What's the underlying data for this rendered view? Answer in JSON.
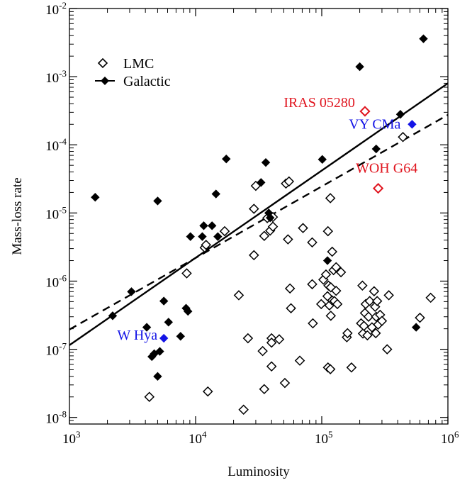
{
  "chart_data": {
    "type": "scatter",
    "xlabel": "Luminosity",
    "ylabel": "Mass-loss rate",
    "xscale": "log",
    "yscale": "log",
    "xlim": [
      1000,
      1000000
    ],
    "ylim": [
      8e-09,
      0.01
    ],
    "x_tick_exponents": [
      "3",
      "4",
      "5",
      "6"
    ],
    "y_tick_exponents": [
      "-8",
      "-7",
      "-6",
      "-5",
      "-4",
      "-3",
      "-2"
    ],
    "tick_base": "10",
    "legend": {
      "placement": "upper-left",
      "entries": [
        {
          "label": "LMC",
          "marker": "open-diamond"
        },
        {
          "label": "Galactic",
          "marker": "filled-diamond-line"
        }
      ]
    },
    "series": [
      {
        "name": "LMC",
        "marker": "open-diamond",
        "color": "#000000",
        "points": [
          [
            4300,
            2e-08
          ],
          [
            12500,
            2.4e-08
          ],
          [
            24000,
            1.3e-08
          ],
          [
            35000,
            2.6e-08
          ],
          [
            51000,
            3.2e-08
          ],
          [
            67000,
            6.8e-08
          ],
          [
            112000,
            5.4e-08
          ],
          [
            117000,
            5.1e-08
          ],
          [
            172000,
            5.4e-08
          ],
          [
            34000,
            9.4e-08
          ],
          [
            40000,
            5.6e-08
          ],
          [
            26000,
            1.45e-07
          ],
          [
            40000,
            1.45e-07
          ],
          [
            40000,
            1.25e-07
          ],
          [
            46000,
            1.4e-07
          ],
          [
            22000,
            6.2e-07
          ],
          [
            56000,
            7.8e-07
          ],
          [
            57000,
            4e-07
          ],
          [
            84000,
            9e-07
          ],
          [
            85000,
            2.4e-07
          ],
          [
            99000,
            4.6e-07
          ],
          [
            103000,
            1.05e-06
          ],
          [
            108000,
            1.25e-06
          ],
          [
            111000,
            6e-07
          ],
          [
            113000,
            8.6e-07
          ],
          [
            115000,
            4.4e-07
          ],
          [
            118000,
            3.1e-07
          ],
          [
            118000,
            8.1e-07
          ],
          [
            121000,
            5.2e-07
          ],
          [
            124000,
            1.45e-06
          ],
          [
            126000,
            5.1e-07
          ],
          [
            130000,
            7.2e-07
          ],
          [
            133000,
            4.6e-07
          ],
          [
            142000,
            1.35e-06
          ],
          [
            130000,
            1.6e-06
          ],
          [
            158000,
            1.5e-07
          ],
          [
            160000,
            1.72e-07
          ],
          [
            205000,
            2.4e-07
          ],
          [
            210000,
            8.6e-07
          ],
          [
            212000,
            1.7e-07
          ],
          [
            216000,
            2.2e-07
          ],
          [
            220000,
            3.4e-07
          ],
          [
            223000,
            4.6e-07
          ],
          [
            230000,
            1.6e-07
          ],
          [
            235000,
            3e-07
          ],
          [
            240000,
            5.1e-07
          ],
          [
            250000,
            2.1e-07
          ],
          [
            260000,
            7.1e-07
          ],
          [
            265000,
            4.2e-07
          ],
          [
            268000,
            1.72e-07
          ],
          [
            270000,
            3e-07
          ],
          [
            275000,
            5.1e-07
          ],
          [
            280000,
            2.3e-07
          ],
          [
            290000,
            3.2e-07
          ],
          [
            300000,
            2.6e-07
          ],
          [
            330000,
            1e-07
          ],
          [
            340000,
            6.2e-07
          ],
          [
            600000,
            2.9e-07
          ],
          [
            730000,
            5.7e-07
          ],
          [
            8500,
            1.3e-06
          ],
          [
            11800,
            3.1e-06
          ],
          [
            12100,
            3.4e-06
          ],
          [
            17000,
            5.4e-06
          ],
          [
            29000,
            2.4e-06
          ],
          [
            29000,
            1.15e-05
          ],
          [
            30000,
            2.5e-05
          ],
          [
            35000,
            4.6e-06
          ],
          [
            37000,
            8.4e-06
          ],
          [
            39000,
            5.5e-06
          ],
          [
            41000,
            6.3e-06
          ],
          [
            41000,
            8.7e-06
          ],
          [
            52000,
            2.7e-05
          ],
          [
            55000,
            2.9e-05
          ],
          [
            54000,
            4.1e-06
          ],
          [
            71000,
            6e-06
          ],
          [
            84000,
            3.7e-06
          ],
          [
            112000,
            5.4e-06
          ],
          [
            117000,
            1.65e-05
          ],
          [
            121000,
            2.7e-06
          ],
          [
            440000,
            0.00013
          ]
        ]
      },
      {
        "name": "Galactic",
        "marker": "filled-diamond",
        "color": "#000000",
        "points": [
          [
            1600,
            1.7e-05
          ],
          [
            2200,
            3.1e-07
          ],
          [
            3100,
            7e-07
          ],
          [
            4100,
            2.1e-07
          ],
          [
            4500,
            7.8e-08
          ],
          [
            4700,
            8.6e-08
          ],
          [
            5000,
            4e-08
          ],
          [
            5200,
            9.3e-08
          ],
          [
            5000,
            1.5e-05
          ],
          [
            5600,
            5.1e-07
          ],
          [
            6100,
            2.5e-07
          ],
          [
            7600,
            1.55e-07
          ],
          [
            8400,
            4e-07
          ],
          [
            8700,
            3.6e-07
          ],
          [
            9100,
            4.5e-06
          ],
          [
            11300,
            4.5e-06
          ],
          [
            11600,
            6.5e-06
          ],
          [
            13500,
            6.5e-06
          ],
          [
            14500,
            1.9e-05
          ],
          [
            15000,
            4.5e-06
          ],
          [
            17500,
            6.2e-05
          ],
          [
            33000,
            2.8e-05
          ],
          [
            36000,
            5.5e-05
          ],
          [
            38000,
            1e-05
          ],
          [
            39000,
            8.5e-06
          ],
          [
            101000,
            6.1e-05
          ],
          [
            111000,
            2e-06
          ],
          [
            200000,
            0.0014
          ],
          [
            270000,
            8.7e-05
          ],
          [
            420000,
            0.00028
          ],
          [
            560000,
            2.1e-07
          ],
          [
            640000,
            0.0036
          ]
        ]
      }
    ],
    "highlighted": [
      {
        "label": "IRAS 05280",
        "x": 220000,
        "y": 0.00031,
        "marker": "open-diamond",
        "color": "#e0141e",
        "label_anchor": "end",
        "label_dx": -14,
        "label_dy": -6
      },
      {
        "label": "WOH G64",
        "x": 280000,
        "y": 2.3e-05,
        "marker": "open-diamond",
        "color": "#e0141e",
        "label_anchor": "middle",
        "label_dx": 12,
        "label_dy": -22
      },
      {
        "label": "VY CMa",
        "x": 520000,
        "y": 0.0002,
        "marker": "filled-diamond",
        "color": "#1414e6",
        "label_anchor": "end",
        "label_dx": -16,
        "label_dy": 6
      },
      {
        "label": "W Hya",
        "x": 5600,
        "y": 1.45e-07,
        "marker": "filled-diamond",
        "color": "#1414e6",
        "label_anchor": "end",
        "label_dx": -9,
        "label_dy": 2
      }
    ],
    "fit_lines": [
      {
        "style": "solid",
        "x": [
          1000,
          1000000
        ],
        "y": [
          1.15e-07,
          0.0008
        ]
      },
      {
        "style": "dashed",
        "x": [
          1000,
          1000000
        ],
        "y": [
          1.95e-07,
          0.000275
        ]
      }
    ]
  }
}
